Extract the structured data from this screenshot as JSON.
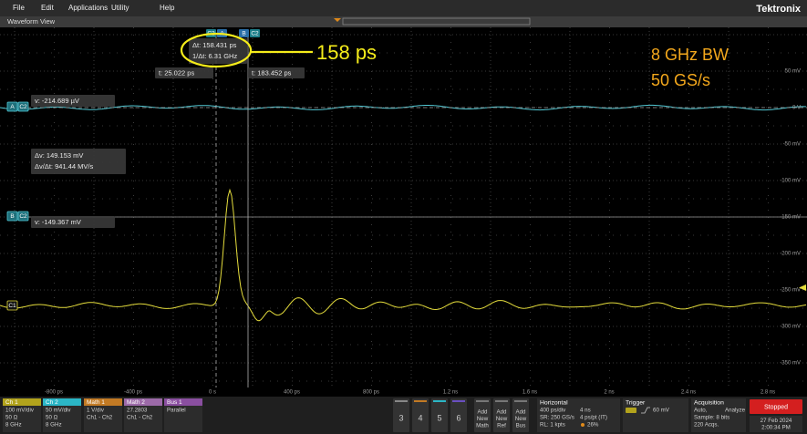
{
  "menu": [
    "File",
    "Edit",
    "Applications",
    "Utility",
    "Help"
  ],
  "brand": "Tektronix",
  "view_title": "Waveform View",
  "cursor_badges_top": [
    "C2",
    "A",
    "B",
    "C2"
  ],
  "cursor_readouts": {
    "delta_t": "Δt: 158.431 ps",
    "inv_delta_t": "1/Δt: 6.31 GHz",
    "t_a": "t: 25.022 ps",
    "t_b": "t: 183.452 ps",
    "v_a": "v: -214.689 µV",
    "delta_v": "Δv: 149.153 mV",
    "dv_dt": "Δv/Δt: 941.44 MV/s",
    "v_b": "v: -149.367 mV"
  },
  "left_badges": {
    "a": "A",
    "a_ch": "C2",
    "b": "B",
    "b_ch": "C2",
    "c1": "C1"
  },
  "annotations": {
    "measure": "158 ps",
    "bandwidth": "8 GHz BW",
    "sample_rate": "50 GS/s"
  },
  "y_axis_labels": [
    "50 mV",
    "0 V",
    "-50 mV",
    "-100 mV",
    "-150 mV",
    "-200 mV",
    "-250 mV",
    "-300 mV",
    "-350 mV"
  ],
  "x_axis_labels": [
    "-800 ps",
    "-400 ps",
    "0 s",
    "400 ps",
    "800 ps",
    "1.2 ns",
    "1.6 ns",
    "2 ns",
    "2.4 ns",
    "2.8 ns"
  ],
  "channels": [
    {
      "name": "Ch 1",
      "lines": [
        "100 mV/div",
        "50 Ω",
        "8 GHz"
      ]
    },
    {
      "name": "Ch 2",
      "lines": [
        "50 mV/div",
        "50 Ω",
        "8 GHz"
      ]
    },
    {
      "name": "Math 1",
      "lines": [
        "1 V/div",
        "Ch1 - Ch2"
      ]
    },
    {
      "name": "Math 2",
      "lines": [
        "27.2803",
        "Ch1 - Ch2"
      ]
    },
    {
      "name": "Bus 1",
      "lines": [
        "Parallel"
      ]
    }
  ],
  "buttons": [
    "3",
    "4",
    "5",
    "6"
  ],
  "add_buttons": [
    [
      "Add",
      "New",
      "Math"
    ],
    [
      "Add",
      "New",
      "Ref"
    ],
    [
      "Add",
      "New",
      "Bus"
    ]
  ],
  "horizontal": {
    "title": "Horizontal",
    "lines": [
      "400 ps/div",
      "4 ns",
      "SR: 250 GS/s",
      "4 ps/pt (IT)",
      "RL: 1 kpts",
      "26%"
    ]
  },
  "trigger": {
    "title": "Trigger",
    "level": "60 mV"
  },
  "acquisition": {
    "title": "Acquisition",
    "lines": [
      "Auto,",
      "Analyze",
      "Sample: 8 bits",
      "220 Acqs."
    ]
  },
  "status": "Stopped",
  "date": "27 Feb 2024",
  "time": "2:00:34 PM"
}
